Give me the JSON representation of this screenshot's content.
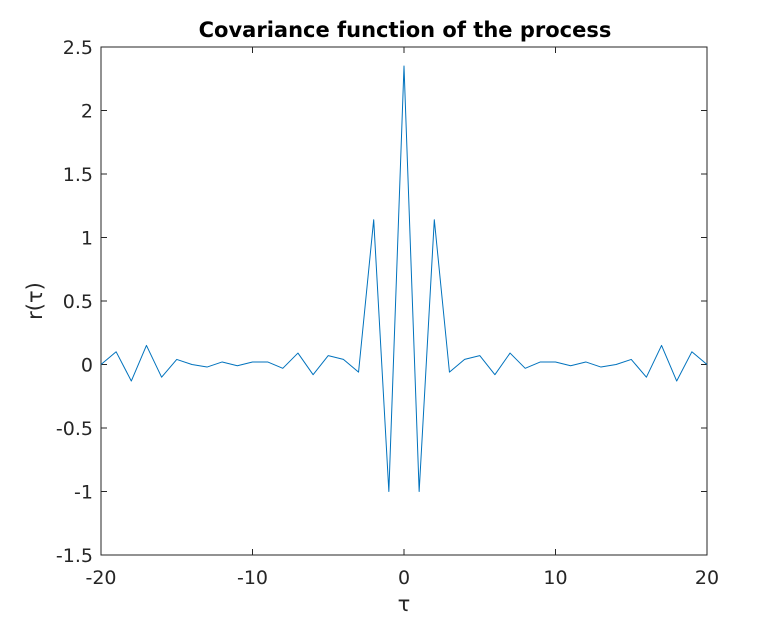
{
  "chart_data": {
    "type": "line",
    "title": "Covariance function of the process",
    "xlabel": "τ",
    "ylabel": "r(τ)",
    "xlim": [
      -20,
      20
    ],
    "ylim": [
      -1.5,
      2.5
    ],
    "grid": false,
    "x_ticks": [
      -20,
      -10,
      0,
      10,
      20
    ],
    "x_tick_labels": [
      "-20",
      "-10",
      "0",
      "10",
      "20"
    ],
    "y_ticks": [
      2.5,
      2,
      1.5,
      1,
      0.5,
      0,
      -0.5,
      -1,
      -1.5
    ],
    "y_tick_labels": [
      "2.5",
      "2",
      "1.5",
      "1",
      "0.5",
      "0",
      "-0.5",
      "-1",
      "-1.5"
    ],
    "series": [
      {
        "color": "#0072BD",
        "x": [
          -20,
          -19,
          -18,
          -17,
          -16,
          -15,
          -14,
          -13,
          -12,
          -11,
          -10,
          -9,
          -8,
          -7,
          -6,
          -5,
          -4,
          -3,
          -2,
          -1,
          0,
          1,
          2,
          3,
          4,
          5,
          6,
          7,
          8,
          9,
          10,
          11,
          12,
          13,
          14,
          15,
          16,
          17,
          18,
          19,
          20
        ],
        "y": [
          0,
          0.1,
          -0.13,
          0.15,
          -0.1,
          0.04,
          0,
          -0.02,
          0.02,
          -0.01,
          0.02,
          0.02,
          -0.03,
          0.09,
          -0.08,
          0.07,
          0.04,
          -0.06,
          1.14,
          -1.0,
          2.35,
          -1.0,
          1.14,
          -0.06,
          0.04,
          0.07,
          -0.08,
          0.09,
          -0.03,
          0.02,
          0.02,
          -0.01,
          0.02,
          -0.02,
          0,
          0.04,
          -0.1,
          0.15,
          -0.13,
          0.1,
          0
        ]
      }
    ]
  }
}
